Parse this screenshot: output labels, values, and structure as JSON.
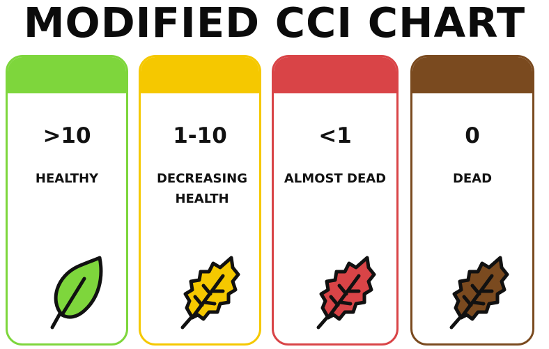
{
  "title": "MODIFIED CCI CHART",
  "cards": [
    {
      "value": ">10",
      "label": "HEALTHY",
      "color": "#7ed63c",
      "leaf_icon": "healthy-leaf-icon"
    },
    {
      "value": "1-10",
      "label": "DECREASING HEALTH",
      "color": "#f5c800",
      "leaf_icon": "decreasing-leaf-icon"
    },
    {
      "value": "<1",
      "label": "ALMOST DEAD",
      "color": "#d94447",
      "leaf_icon": "almost-dead-leaf-icon"
    },
    {
      "value": "0",
      "label": "DEAD",
      "color": "#7a4a1f",
      "leaf_icon": "dead-leaf-icon"
    }
  ]
}
